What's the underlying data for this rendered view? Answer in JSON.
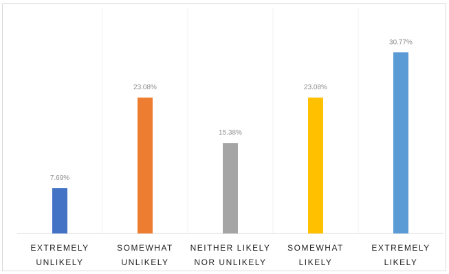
{
  "chart_data": {
    "type": "bar",
    "title": "",
    "xlabel": "",
    "ylabel": "",
    "categories": [
      "EXTREMELY UNLIKELY",
      "SOMEWHAT UNLIKELY",
      "NEITHER LIKELY NOR UNLIKELY",
      "SOMEWHAT LIKELY",
      "EXTREMELY LIKELY"
    ],
    "values": [
      7.69,
      23.08,
      15.38,
      23.08,
      30.77
    ],
    "value_labels": [
      "7.69%",
      "23.08%",
      "15.38%",
      "23.08%",
      "30.77%"
    ],
    "colors": [
      "#4472c4",
      "#ed7d31",
      "#a5a5a5",
      "#ffc000",
      "#5b9bd5"
    ],
    "ylim": [
      0,
      35
    ],
    "grid": false,
    "legend": "none"
  }
}
